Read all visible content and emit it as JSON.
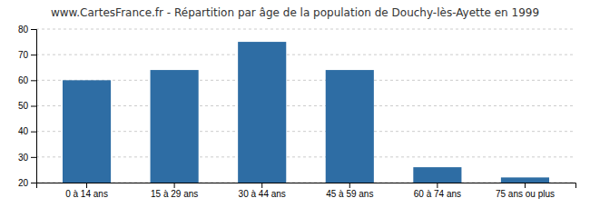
{
  "chart_data": {
    "type": "bar",
    "title": "www.CartesFrance.fr - Répartition par âge de la population de Douchy-lès-Ayette en 1999",
    "categories": [
      "0 à 14 ans",
      "15 à 29 ans",
      "30 à 44 ans",
      "45 à 59 ans",
      "60 à 74 ans",
      "75 ans ou plus"
    ],
    "values": [
      60,
      64,
      75,
      64,
      26,
      22
    ],
    "color": "#2e6da4",
    "ylim": [
      20,
      80
    ],
    "yticks": [
      20,
      30,
      40,
      50,
      60,
      70,
      80
    ],
    "grid": true
  }
}
